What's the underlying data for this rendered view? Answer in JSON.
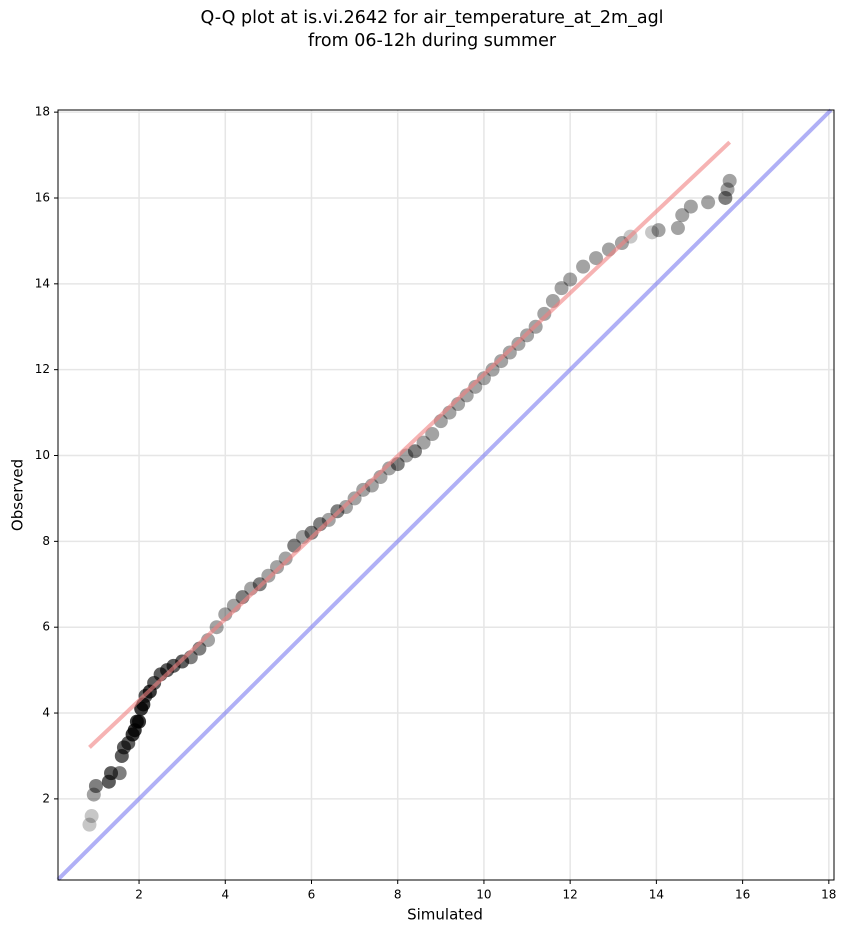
{
  "chart_data": {
    "type": "scatter",
    "title_lines": [
      "Q-Q plot at is.vi.2642 for air_temperature_at_2m_agl",
      "from 06-12h during summer"
    ],
    "x_label": "Simulated",
    "y_label": "Observed",
    "xlim": [
      0.12,
      18.12
    ],
    "ylim": [
      0.11,
      18.05
    ],
    "xticks": [
      2,
      4,
      6,
      8,
      10,
      12,
      14,
      16,
      18
    ],
    "yticks": [
      2,
      4,
      6,
      8,
      10,
      12,
      14,
      16,
      18
    ],
    "grid": true,
    "color": "#000000",
    "x": [
      0.85,
      0.9,
      0.95,
      1.0,
      1.3,
      1.35,
      1.55,
      1.6,
      1.65,
      1.75,
      1.85,
      1.9,
      1.95,
      2.0,
      2.05,
      2.1,
      2.15,
      2.25,
      2.35,
      2.5,
      2.65,
      2.8,
      3.0,
      3.2,
      3.4,
      3.6,
      3.8,
      4.0,
      4.2,
      4.4,
      4.6,
      4.8,
      5.0,
      5.2,
      5.4,
      5.6,
      5.8,
      6.0,
      6.2,
      6.4,
      6.6,
      6.8,
      7.0,
      7.2,
      7.4,
      7.6,
      7.8,
      8.0,
      8.2,
      8.4,
      8.6,
      8.8,
      9.0,
      9.2,
      9.4,
      9.6,
      9.8,
      10.0,
      10.2,
      10.4,
      10.6,
      10.8,
      11.0,
      11.2,
      11.4,
      11.6,
      11.8,
      12.0,
      12.3,
      12.6,
      12.9,
      13.2,
      13.4,
      13.9,
      14.05,
      14.5,
      14.6,
      14.8,
      15.2,
      15.6,
      15.65,
      15.7
    ],
    "values": [
      1.4,
      1.6,
      2.1,
      2.3,
      2.4,
      2.6,
      2.6,
      3.0,
      3.2,
      3.3,
      3.5,
      3.6,
      3.8,
      3.8,
      4.1,
      4.2,
      4.4,
      4.5,
      4.7,
      4.9,
      5.0,
      5.1,
      5.2,
      5.3,
      5.5,
      5.7,
      6.0,
      6.3,
      6.5,
      6.7,
      6.9,
      7.0,
      7.2,
      7.4,
      7.6,
      7.9,
      8.1,
      8.2,
      8.4,
      8.5,
      8.7,
      8.8,
      9.0,
      9.2,
      9.3,
      9.5,
      9.7,
      9.8,
      10.0,
      10.1,
      10.3,
      10.5,
      10.8,
      11.0,
      11.2,
      11.4,
      11.6,
      11.8,
      12.0,
      12.2,
      12.4,
      12.6,
      12.8,
      13.0,
      13.3,
      13.6,
      13.9,
      14.1,
      14.4,
      14.6,
      14.8,
      14.95,
      15.1,
      15.2,
      15.25,
      15.3,
      15.6,
      15.8,
      15.9,
      16.0,
      16.2,
      16.4
    ],
    "fit_line": {
      "x": [
        0.85,
        15.7
      ],
      "y": [
        3.2,
        17.3
      ],
      "color": "#f08080"
    },
    "identity_line": {
      "x": [
        0.12,
        18.05
      ],
      "y": [
        0.12,
        18.05
      ],
      "color": "#7b7bf0"
    }
  }
}
